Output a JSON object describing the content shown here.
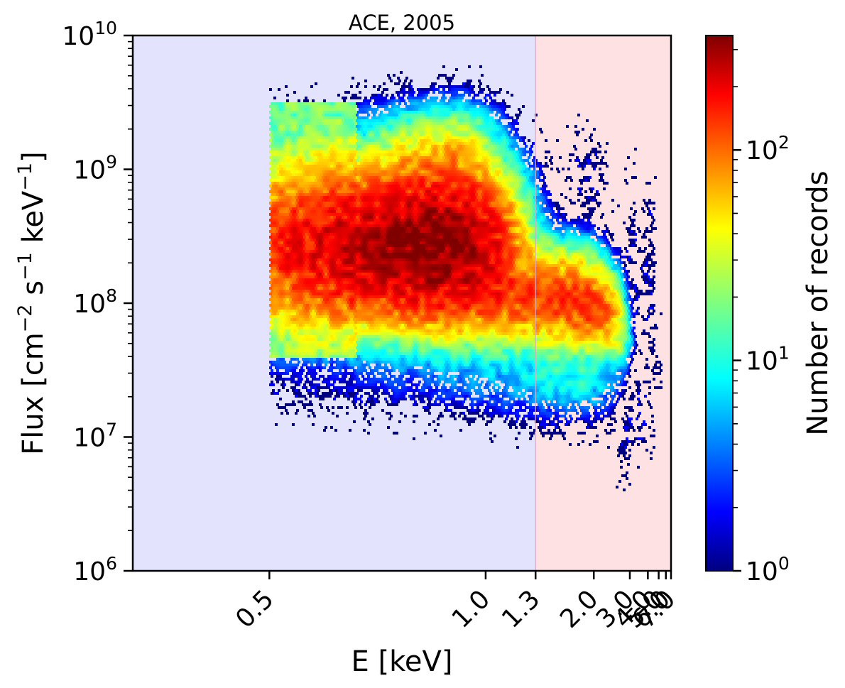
{
  "chart_data": {
    "type": "heatmap",
    "subtype": "hexbin",
    "title": "ACE, 2005",
    "xlabel": "E [keV]",
    "ylabel": "Flux [cm$^{-2}$ s$^{-1}$ keV$^{-1}$]",
    "ylabel_parts": {
      "base": "Flux [cm",
      "exp1": "−2",
      "mid": " s",
      "exp2": "−1",
      "unit": " keV",
      "exp3": "−1",
      "close": "]"
    },
    "x_scale": "reciprocal",
    "x_tick_values": [
      0.5,
      1.0,
      1.3,
      2.0,
      3.0,
      4.0,
      5.0,
      6.0,
      7.0
    ],
    "x_tick_labels": [
      "0.5",
      "1.0",
      "1.3",
      "2.0",
      "3.0",
      "4.0",
      "5.0",
      "6.0",
      "7.0"
    ],
    "xlim": [
      0.38,
      7.0
    ],
    "y_scale": "log",
    "ylim": [
      1000000,
      10000000000
    ],
    "y_tick_labels": [
      {
        "base": "10",
        "exp": "6"
      },
      {
        "base": "10",
        "exp": "7"
      },
      {
        "base": "10",
        "exp": "8"
      },
      {
        "base": "10",
        "exp": "9"
      },
      {
        "base": "10",
        "exp": "10"
      }
    ],
    "shaded_regions": [
      {
        "x_from": 0.38,
        "x_to": 1.3,
        "color": "#e3e3fd"
      },
      {
        "x_from": 1.3,
        "x_to": 7.0,
        "color": "#fee2e3"
      }
    ],
    "divider_x": 1.3,
    "divider_color": "#dba8c8",
    "colorbar": {
      "label": "Number of records",
      "scale": "log",
      "range": [
        1,
        350
      ],
      "colormap": "jet",
      "tick_labels": [
        {
          "base": "10",
          "exp": "0"
        },
        {
          "base": "10",
          "exp": "1"
        },
        {
          "base": "10",
          "exp": "2"
        }
      ]
    },
    "density_blobs": [
      {
        "E": 0.8,
        "logF": 8.45,
        "sE": 0.2,
        "sF": 0.3,
        "peak": 350
      },
      {
        "E": 1.45,
        "logF": 8.05,
        "sE": 0.45,
        "sF": 0.2,
        "peak": 110
      },
      {
        "E": 2.1,
        "logF": 7.95,
        "sE": 0.35,
        "sF": 0.15,
        "peak": 80
      },
      {
        "E": 0.85,
        "logF": 9.1,
        "sE": 0.12,
        "sF": 0.2,
        "peak": 40
      },
      {
        "E": 1.7,
        "logF": 7.45,
        "sE": 0.55,
        "sF": 0.18,
        "peak": 10
      },
      {
        "E": 2.55,
        "logF": 7.75,
        "sE": 0.3,
        "sF": 0.12,
        "peak": 22
      }
    ],
    "scatter_regions": [
      {
        "E": 3.2,
        "logF": 8.2,
        "sE": 0.45,
        "sF": 0.4
      },
      {
        "E": 4.0,
        "logF": 8.1,
        "sE": 0.45,
        "sF": 0.35
      },
      {
        "E": 4.8,
        "logF": 7.65,
        "sE": 0.3,
        "sF": 0.18
      },
      {
        "E": 3.6,
        "logF": 7.2,
        "sE": 0.45,
        "sF": 0.25
      },
      {
        "E": 4.2,
        "logF": 8.65,
        "sE": 0.35,
        "sF": 0.12
      },
      {
        "E": 4.6,
        "logF": 8.95,
        "sE": 0.06,
        "sF": 0.05
      },
      {
        "E": 2.9,
        "logF": 7.05,
        "sE": 0.35,
        "sF": 0.2
      },
      {
        "E": 5.2,
        "logF": 7.45,
        "sE": 0.12,
        "sF": 0.1
      },
      {
        "E": 1.9,
        "logF": 8.95,
        "sE": 0.25,
        "sF": 0.2
      }
    ]
  }
}
